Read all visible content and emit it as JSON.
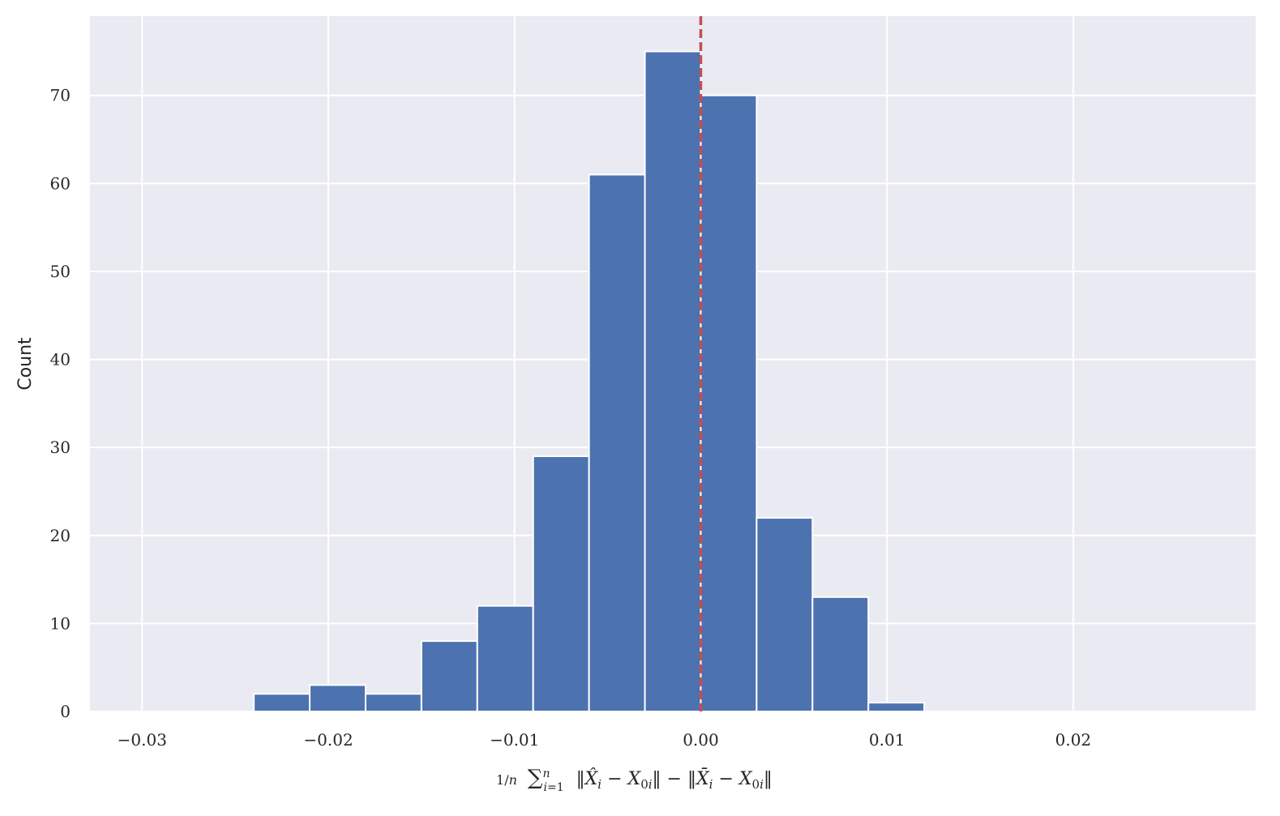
{
  "chart_data": {
    "type": "bar",
    "style": "histogram",
    "xlabel": "1/n Σ_{i=1}^{n} ‖X̂_i − X_0i‖ − ‖X̄_i − X_0i‖",
    "ylabel": "Count",
    "xlim": [
      -0.0328,
      0.0298
    ],
    "ylim": [
      0,
      79
    ],
    "grid": true,
    "bin_edges": [
      -0.024,
      -0.021,
      -0.018,
      -0.015,
      -0.012,
      -0.009,
      -0.006,
      -0.003,
      0.0,
      0.003,
      0.006,
      0.009,
      0.012
    ],
    "values": [
      2,
      3,
      2,
      8,
      12,
      29,
      61,
      75,
      70,
      22,
      13,
      1
    ],
    "x_ticks": [
      -0.03,
      -0.02,
      -0.01,
      0.0,
      0.01,
      0.02
    ],
    "x_tick_labels": [
      "−0.03",
      "−0.02",
      "−0.01",
      "0.00",
      "0.01",
      "0.02"
    ],
    "y_ticks": [
      0,
      10,
      20,
      30,
      40,
      50,
      60,
      70
    ],
    "y_tick_labels": [
      "0",
      "10",
      "20",
      "30",
      "40",
      "50",
      "60",
      "70"
    ],
    "reference_line": {
      "x": 0.0,
      "style": "dashed",
      "color": "#c44e52"
    },
    "colors": {
      "bar": "#4c72b0",
      "bar_edge": "#ffffff",
      "axes_background": "#eaeaf2",
      "grid": "#ffffff"
    }
  }
}
